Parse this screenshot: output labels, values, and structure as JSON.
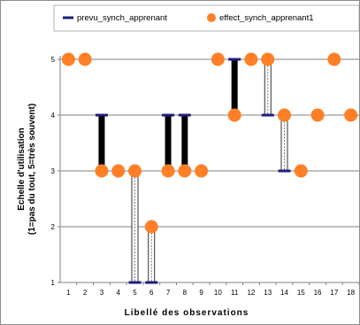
{
  "chart_data": {
    "type": "scatter",
    "title": "",
    "xlabel": "Libellé des observations",
    "ylabel_line1": "Echelle d'utilisation",
    "ylabel_line2": "(1=pas du tout, 5=très souvent)",
    "categories": [
      "1",
      "2",
      "3",
      "4",
      "5",
      "6",
      "7",
      "8",
      "9",
      "10",
      "11",
      "12",
      "13",
      "14",
      "15",
      "16",
      "17",
      "18"
    ],
    "ylim": [
      1,
      5
    ],
    "yticks": [
      "1",
      "2",
      "3",
      "4",
      "5"
    ],
    "grid": true,
    "legend_position": "top",
    "series": [
      {
        "name": "prevu_synch_apprenant",
        "color": "#1f1f7a",
        "marker": "dash",
        "values": [
          5,
          5,
          4,
          3,
          1,
          1,
          4,
          4,
          3,
          5,
          5,
          5,
          4,
          3,
          3,
          4,
          5,
          4
        ]
      },
      {
        "name": "effect_synch_apprenant1",
        "color": "#ff7f27",
        "marker": "circle",
        "values": [
          5,
          5,
          3,
          3,
          3,
          2,
          3,
          3,
          3,
          5,
          4,
          5,
          5,
          4,
          3,
          4,
          5,
          4
        ]
      }
    ]
  }
}
